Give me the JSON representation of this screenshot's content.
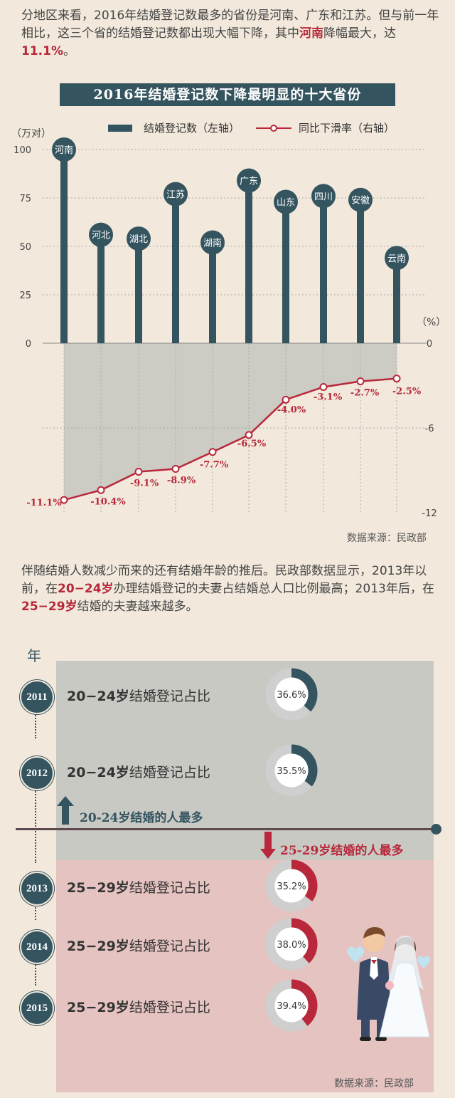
{
  "para1": {
    "text_a": "分地区来看，2016年结婚登记数最多的省份是河南、广东和江苏。但与前一年相比，这三个省的结婚登记数都出现大幅下降，其中",
    "hl_a": "河南",
    "text_b": "降幅最大，达",
    "hl_b": "11.1%",
    "text_c": "。"
  },
  "chart_title": "2016年结婚登记数下降最明显的十大省份",
  "chart_data": {
    "type": "bar",
    "title": "2016年结婚登记数下降最明显的十大省份",
    "categories": [
      "河南",
      "河北",
      "湖北",
      "江苏",
      "湖南",
      "广东",
      "山东",
      "四川",
      "安徽",
      "云南"
    ],
    "series": [
      {
        "name": "结婚登记数（左轴）",
        "type": "bar",
        "axis": "left",
        "values": [
          100,
          56,
          54,
          77,
          52,
          84,
          73,
          76,
          74,
          44
        ]
      },
      {
        "name": "同比下滑率（右轴）",
        "type": "line",
        "axis": "right",
        "values": [
          -11.1,
          -10.4,
          -9.1,
          -8.9,
          -7.7,
          -6.5,
          -4.0,
          -3.1,
          -2.7,
          -2.5
        ]
      }
    ],
    "left_axis": {
      "unit": "（万对）",
      "ylim": [
        0,
        100
      ],
      "ticks": [
        100,
        75,
        50,
        25,
        0
      ]
    },
    "right_axis": {
      "unit": "（%）",
      "ylim": [
        -12,
        0
      ],
      "ticks": [
        0,
        -6,
        -12
      ]
    },
    "line_labels": [
      "-11.1%",
      "-10.4%",
      "-9.1%",
      "-8.9%",
      "-7.7%",
      "-6.5%",
      "-4.0%",
      "-3.1%",
      "-2.7%",
      "-2.5%"
    ],
    "legend": {
      "placement": "top",
      "bar_label": "结婚登记数（左轴）",
      "line_label": "同比下滑率（右轴）"
    },
    "grid": true,
    "colors": {
      "bar": "#34545f",
      "line": "#b8283a"
    }
  },
  "source1": "数据来源：民政部",
  "para2": {
    "text_a": "伴随结婚人数减少而来的还有结婚年龄的推后。民政部数据显示，2013年以前，在",
    "hl_a": "20−24岁",
    "text_b": "办理结婚登记的夫妻占结婚总人口比例最高；2013年后，在",
    "hl_b": "25−29岁",
    "text_c": "结婚的夫妻越来越多。"
  },
  "timeline": {
    "year_header": "年",
    "rows": [
      {
        "year": "2011",
        "age": "20−24岁",
        "label": "结婚登记占比",
        "pct": 36.6,
        "pct_text": "36.6%",
        "color": "#34545f"
      },
      {
        "year": "2012",
        "age": "20−24岁",
        "label": "结婚登记占比",
        "pct": 35.5,
        "pct_text": "35.5%",
        "color": "#34545f"
      },
      {
        "year": "2013",
        "age": "25−29岁",
        "label": "结婚登记占比",
        "pct": 35.2,
        "pct_text": "35.2%",
        "color": "#b8283a"
      },
      {
        "year": "2014",
        "age": "25−29岁",
        "label": "结婚登记占比",
        "pct": 38.0,
        "pct_text": "38.0%",
        "color": "#b8283a"
      },
      {
        "year": "2015",
        "age": "25−29岁",
        "label": "结婚登记占比",
        "pct": 39.4,
        "pct_text": "39.4%",
        "color": "#b8283a"
      }
    ],
    "note_up": "20-24岁结婚的人最多",
    "note_down": "25-29岁结婚的人最多"
  },
  "source2": "数据来源：民政部"
}
